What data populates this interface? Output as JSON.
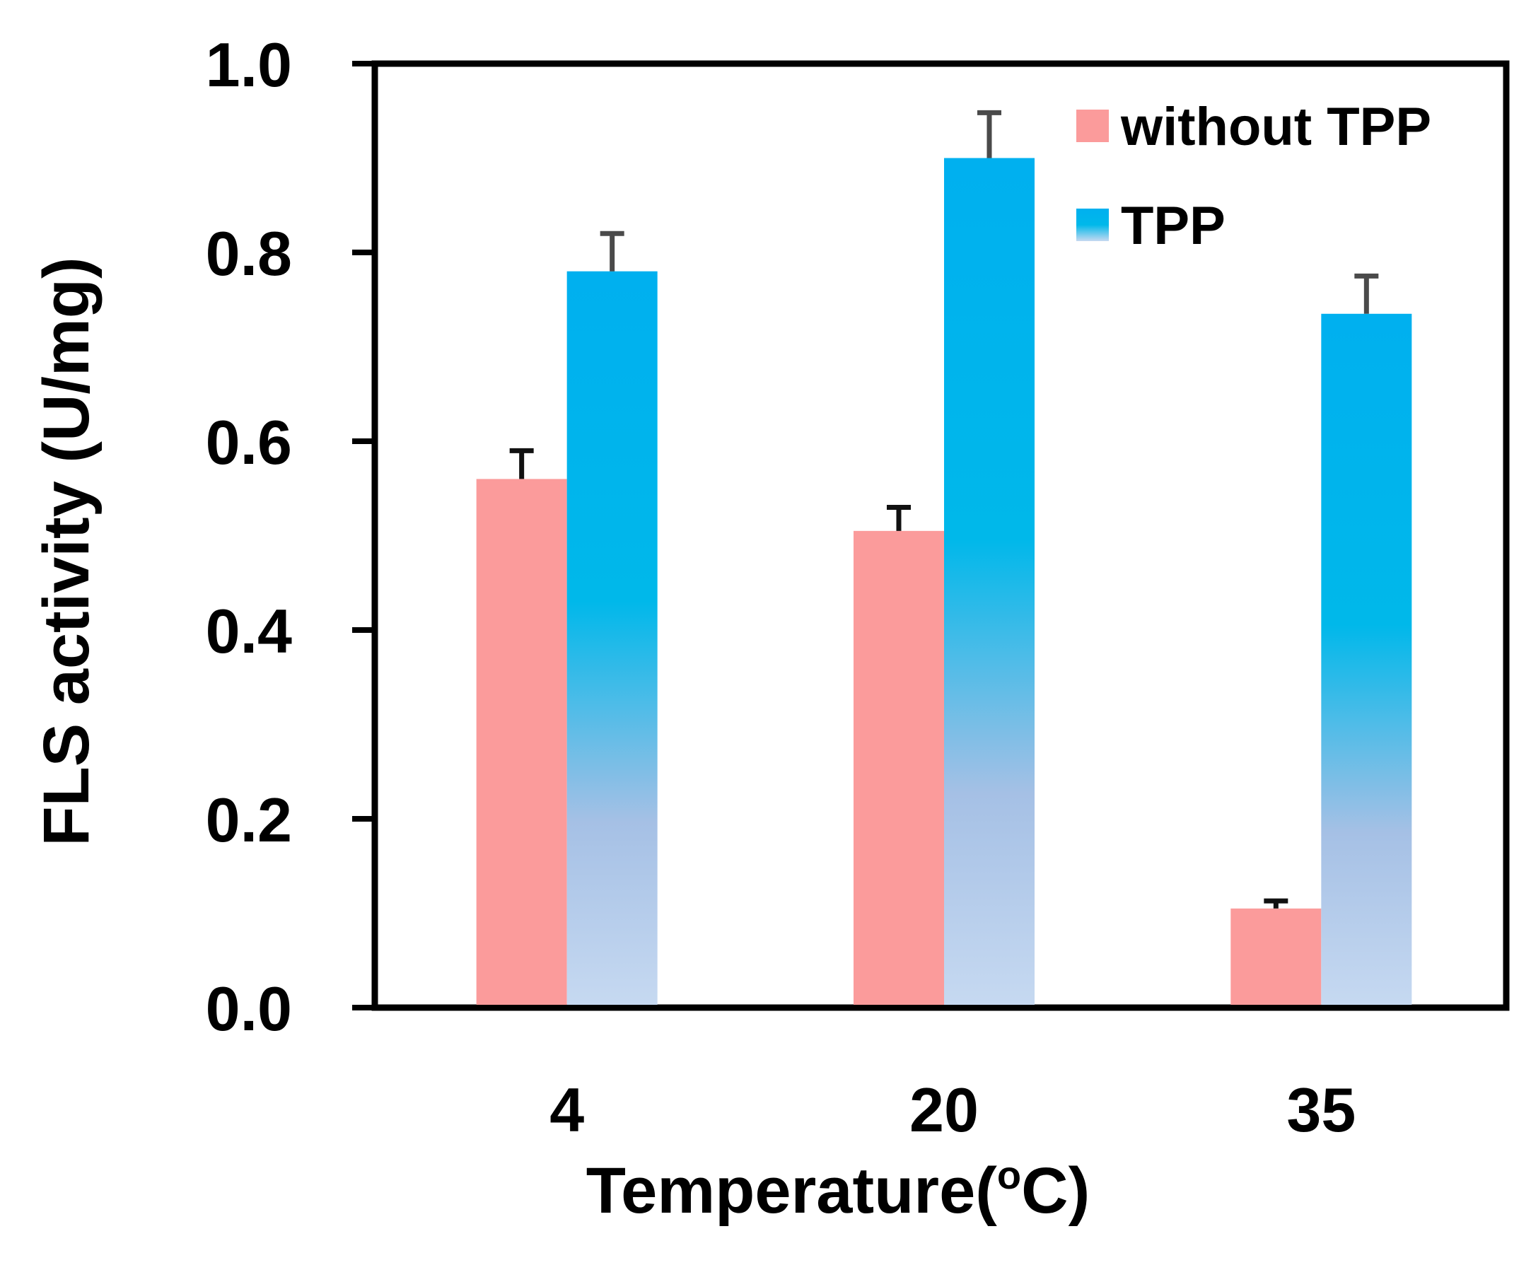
{
  "chart_data": {
    "type": "bar",
    "title": "",
    "xlabel_main": "Temperature(",
    "xlabel_sup": "o",
    "xlabel_end": "C)",
    "ylabel": "FLS activity (U/mg)",
    "ylim": [
      0,
      1.0
    ],
    "yticks": [
      {
        "value": 0.0,
        "label": "0.0"
      },
      {
        "value": 0.2,
        "label": "0.2"
      },
      {
        "value": 0.4,
        "label": "0.4"
      },
      {
        "value": 0.6,
        "label": "0.6"
      },
      {
        "value": 0.8,
        "label": "0.8"
      },
      {
        "value": 1.0,
        "label": "1.0"
      }
    ],
    "categories": [
      "4",
      "20",
      "35"
    ],
    "legend_position": "top-right",
    "series": [
      {
        "name": "without TPP",
        "color": "#fb9b9b",
        "values": [
          0.56,
          0.505,
          0.105
        ],
        "errors": [
          0.03,
          0.025,
          0.008
        ]
      },
      {
        "name": "TPP",
        "color_top": "#00b0ef",
        "color_bottom": "#c6d9f1",
        "values": [
          0.78,
          0.9,
          0.735
        ],
        "errors": [
          0.04,
          0.048,
          0.04
        ]
      }
    ]
  }
}
